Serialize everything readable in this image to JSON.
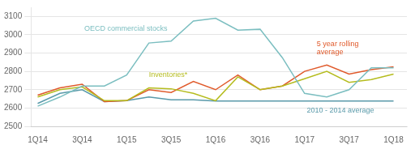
{
  "chart_data": {
    "type": "line",
    "x": [
      0,
      1,
      2,
      3,
      4,
      5,
      6,
      7,
      8,
      9,
      10,
      11,
      12,
      13,
      14,
      15,
      16
    ],
    "series": [
      {
        "color": "#7bbec0",
        "values": [
          2610,
          2660,
          2720,
          2720,
          2780,
          2955,
          2965,
          3075,
          3090,
          3025,
          3030,
          2875,
          2680,
          2660,
          2700,
          2820,
          2820
        ]
      },
      {
        "color": "#b5bc1e",
        "values": [
          2660,
          2700,
          2715,
          2640,
          2640,
          2710,
          2705,
          2680,
          2640,
          2770,
          2700,
          2720,
          2760,
          2800,
          2740,
          2755,
          2785
        ]
      },
      {
        "color": "#e05a2b",
        "values": [
          2670,
          2710,
          2730,
          2635,
          2640,
          2700,
          2685,
          2745,
          2700,
          2780,
          2700,
          2720,
          2800,
          2835,
          2785,
          2810,
          2825
        ]
      },
      {
        "color": "#5a9aaa",
        "values": [
          2625,
          2680,
          2700,
          2635,
          2640,
          2660,
          2645,
          2645,
          2638,
          2638,
          2638,
          2638,
          2638,
          2638,
          2638,
          2638,
          2638
        ]
      }
    ],
    "annotations": [
      {
        "text": "OECD commercial stocks",
        "x": 2.1,
        "y": 3008
      },
      {
        "text": "Inventories*",
        "x": 5.0,
        "y": 2758
      },
      {
        "text": "5 year rolling\naverage",
        "x": 12.55,
        "y": 2880
      },
      {
        "text": "2010 - 2014 average",
        "x": 12.1,
        "y": 2612
      }
    ],
    "xlim": [
      -0.3,
      16.6
    ],
    "xticks": [
      {
        "value": 0,
        "label": "1Q14"
      },
      {
        "value": 2,
        "label": "3Q14"
      },
      {
        "value": 4,
        "label": "1Q15"
      },
      {
        "value": 6,
        "label": "3Q15"
      },
      {
        "value": 8,
        "label": "1Q16"
      },
      {
        "value": 10,
        "label": "3Q16"
      },
      {
        "value": 12,
        "label": "1Q17"
      },
      {
        "value": 14,
        "label": "3Q17"
      },
      {
        "value": 16,
        "label": "1Q18"
      }
    ],
    "ylim": [
      2500,
      3150
    ],
    "yticks": [
      2500,
      2600,
      2700,
      2800,
      2900,
      3000,
      3100
    ],
    "grid": true
  }
}
